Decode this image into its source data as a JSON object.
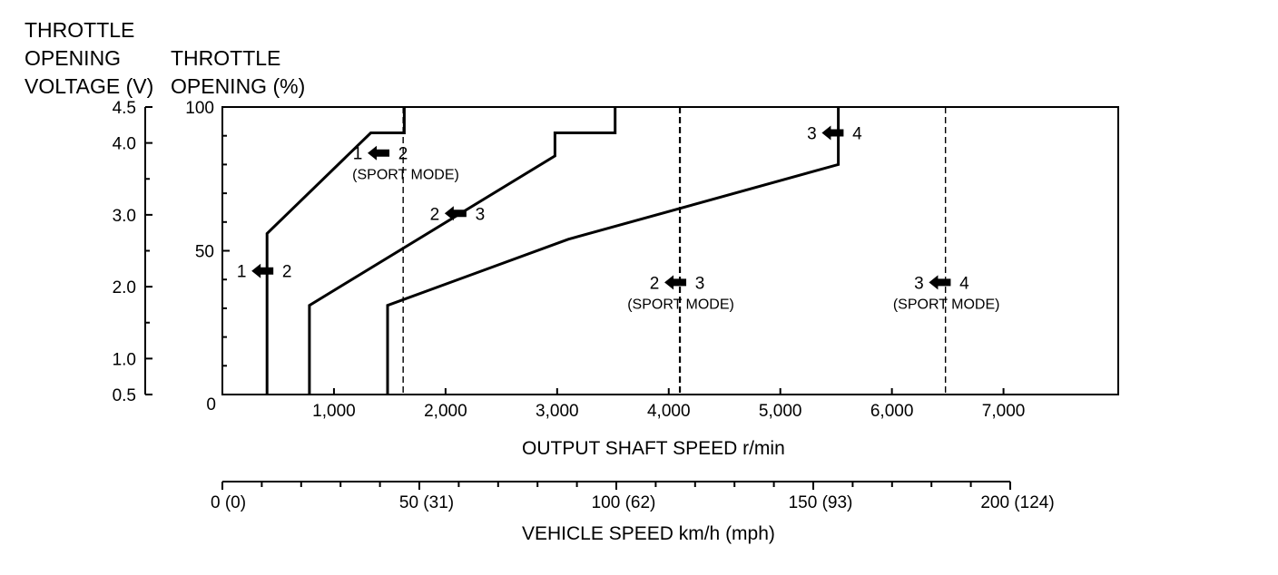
{
  "header": {
    "voltage_line1": "THROTTLE",
    "voltage_line2": "OPENING",
    "voltage_line3": "VOLTAGE (V)",
    "opening_line1": "THROTTLE",
    "opening_line2": "OPENING (%)"
  },
  "chart_data": {
    "type": "line",
    "xlabel": "OUTPUT SHAFT SPEED r/min",
    "ylabel": "THROTTLE OPENING (%)",
    "ylabel_secondary": "THROTTLE OPENING VOLTAGE (V)",
    "xlabel_secondary": "VEHICLE SPEED km/h (mph)",
    "xlim": [
      0,
      8000
    ],
    "ylim": [
      0,
      100
    ],
    "grid": false,
    "x_ticks": [
      1000,
      2000,
      3000,
      4000,
      5000,
      6000,
      7000
    ],
    "x_tick_labels": [
      "1,000",
      "2,000",
      "3,000",
      "4,000",
      "5,000",
      "6,000",
      "7,000"
    ],
    "y_ticks": [
      0,
      50,
      100
    ],
    "y_tick_labels": [
      "0",
      "50",
      "100"
    ],
    "voltage_ticks": [
      0.5,
      1.0,
      2.0,
      3.0,
      4.0,
      4.5
    ],
    "voltage_tick_labels": [
      "0.5",
      "1.0",
      "2.0",
      "3.0",
      "4.0",
      "4.5"
    ],
    "vehicle_speed_ticks": [
      0,
      50,
      100,
      150,
      200
    ],
    "vehicle_speed_tick_labels": [
      "0 (0)",
      "50 (31)",
      "100 (62)",
      "150 (93)",
      "200 (124)"
    ],
    "series": [
      {
        "label": "1 2",
        "x": [
          400,
          400,
          1330,
          1630,
          1630
        ],
        "y": [
          0,
          56,
          91,
          91,
          100
        ]
      },
      {
        "label": "2 3",
        "x": [
          780,
          780,
          2980,
          2980,
          3520,
          3520
        ],
        "y": [
          0,
          31,
          83,
          91,
          91,
          100
        ]
      },
      {
        "label": "3 4",
        "x": [
          1480,
          1480,
          3100,
          5520,
          5520
        ],
        "y": [
          0,
          31,
          54,
          80,
          100
        ]
      }
    ],
    "sport_mode_lines": [
      {
        "label": "1 2",
        "mode": "(SPORT MODE)",
        "x": 1620
      },
      {
        "label": "2 3",
        "mode": "(SPORT MODE)",
        "x": 4100
      },
      {
        "label": "3 4",
        "mode": "(SPORT MODE)",
        "x": 6480
      }
    ],
    "annotations": [
      {
        "from": "1",
        "to": "2",
        "x": 400,
        "y": 43
      },
      {
        "from": "2",
        "to": "3",
        "x": 2130,
        "y": 63
      },
      {
        "from": "3",
        "to": "4",
        "x": 5510,
        "y": 91
      },
      {
        "from": "1",
        "to": "2",
        "x": 1440,
        "y": 84
      },
      {
        "from": "2",
        "to": "3",
        "x": 4100,
        "y": 39
      },
      {
        "from": "3",
        "to": "4",
        "x": 6470,
        "y": 39
      }
    ]
  }
}
